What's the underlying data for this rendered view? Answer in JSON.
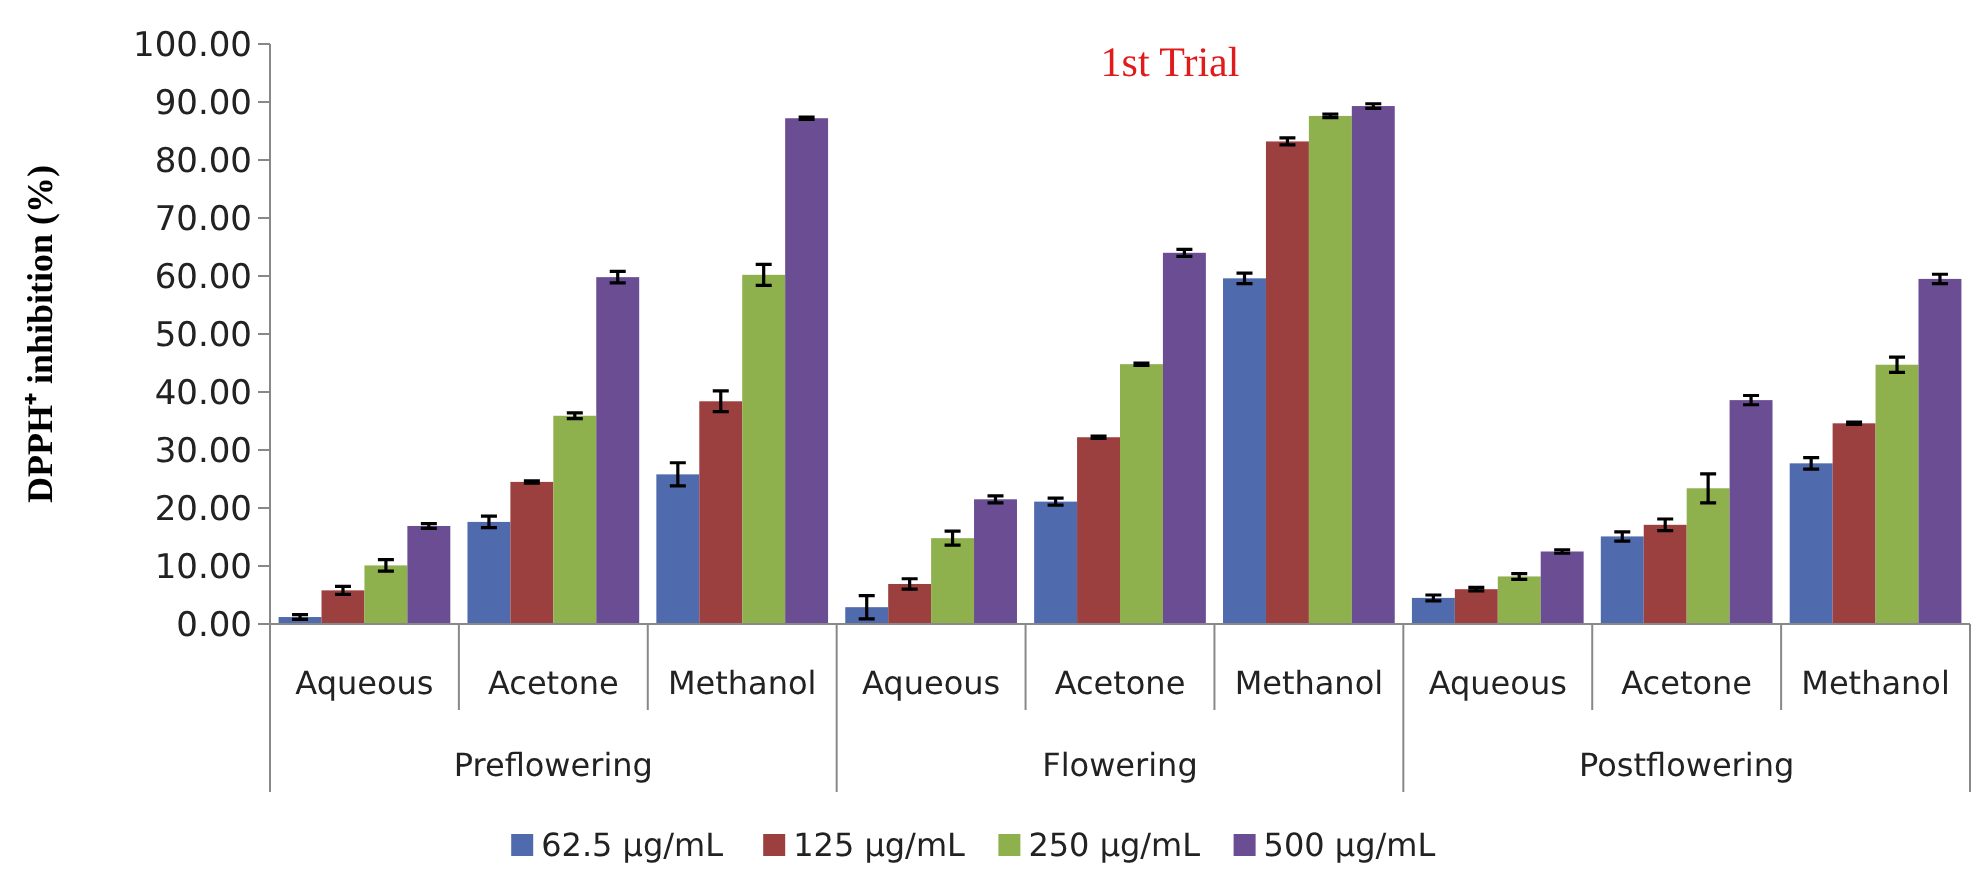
{
  "chart_data": {
    "type": "bar",
    "title": "1st Trial",
    "ylabel": "DPPH⁺ inhibition (%)",
    "categories": [
      "Aqueous",
      "Acetone",
      "Methanol",
      "Aqueous",
      "Acetone",
      "Methanol",
      "Aqueous",
      "Acetone",
      "Methanol"
    ],
    "annotations": [
      "Preflowering",
      "Flowering",
      "Postflowering"
    ],
    "series": [
      {
        "name": "62.5 µg/mL",
        "color": "#4f6aad",
        "values": [
          1.2,
          17.6,
          25.8,
          2.9,
          21.1,
          59.6,
          4.5,
          15.1,
          27.7
        ],
        "errors": [
          0.4,
          1.0,
          2.0,
          2.0,
          0.6,
          0.9,
          0.5,
          0.8,
          1.0
        ]
      },
      {
        "name": "125 µg/mL",
        "color": "#9b403e",
        "values": [
          5.8,
          24.5,
          38.4,
          6.9,
          32.2,
          83.2,
          6.0,
          17.1,
          34.6
        ],
        "errors": [
          0.7,
          0.2,
          1.8,
          0.9,
          0.2,
          0.6,
          0.3,
          1.0,
          0.2
        ]
      },
      {
        "name": "250 µg/mL",
        "color": "#8eb04d",
        "values": [
          10.1,
          35.9,
          60.2,
          14.8,
          44.8,
          87.6,
          8.2,
          23.4,
          44.7
        ],
        "errors": [
          1.0,
          0.5,
          1.8,
          1.2,
          0.2,
          0.3,
          0.5,
          2.5,
          1.3
        ]
      },
      {
        "name": "500 µg/mL",
        "color": "#6a4d92",
        "values": [
          16.9,
          59.8,
          87.2,
          21.5,
          64.0,
          89.3,
          12.5,
          38.6,
          59.5
        ],
        "errors": [
          0.4,
          1.0,
          0.2,
          0.6,
          0.6,
          0.4,
          0.3,
          0.8,
          0.8
        ]
      }
    ],
    "ylim": [
      0,
      100
    ],
    "yticks": [
      {
        "value": 0,
        "label": "0.00"
      },
      {
        "value": 10,
        "label": "10.00"
      },
      {
        "value": 20,
        "label": "20.00"
      },
      {
        "value": 30,
        "label": "30.00"
      },
      {
        "value": 40,
        "label": "40.00"
      },
      {
        "value": 50,
        "label": "50.00"
      },
      {
        "value": 60,
        "label": "60.00"
      },
      {
        "value": 70,
        "label": "70.00"
      },
      {
        "value": 80,
        "label": "80.00"
      },
      {
        "value": 90,
        "label": "90.00"
      },
      {
        "value": 100,
        "label": "100.00"
      }
    ],
    "grid": false,
    "legend": "bottom"
  }
}
